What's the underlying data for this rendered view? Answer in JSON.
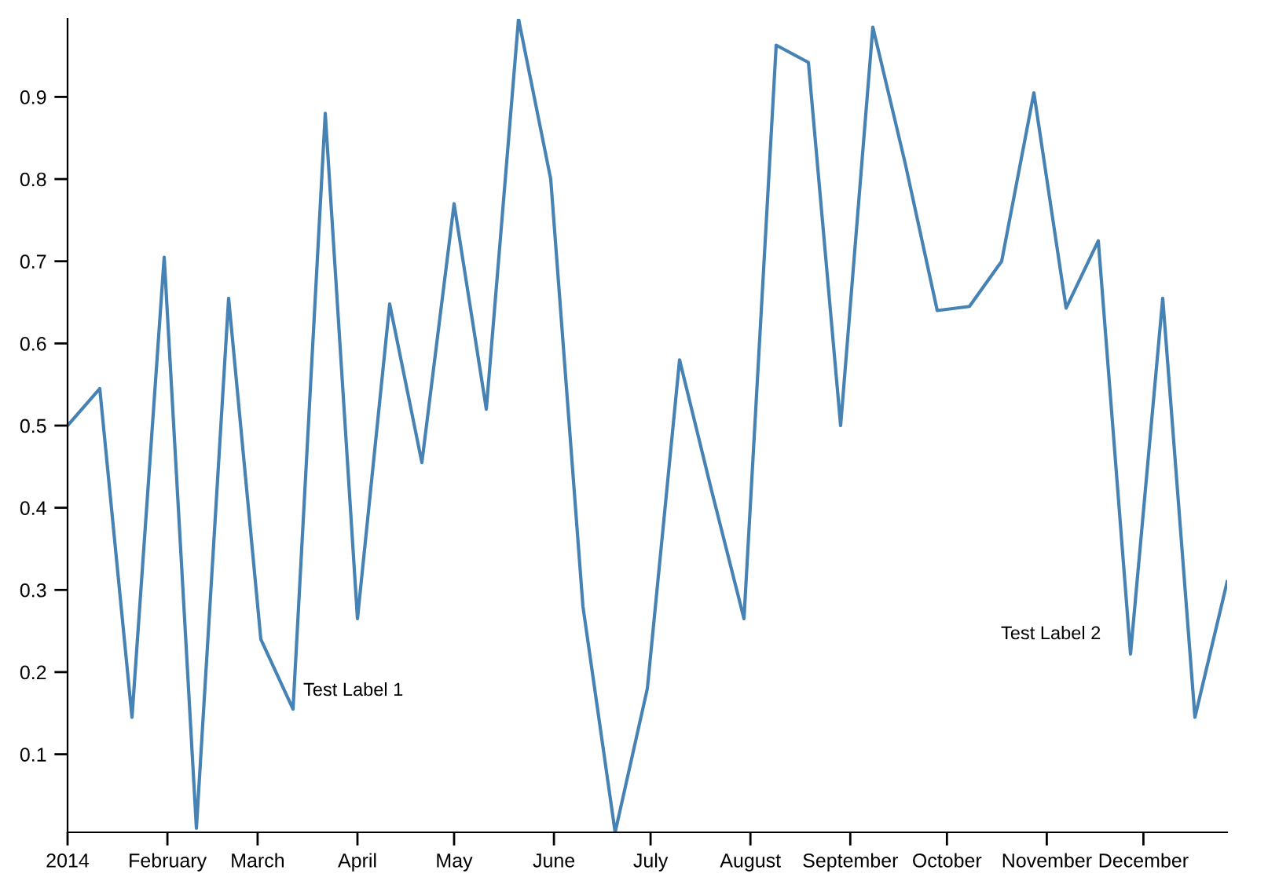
{
  "chart_data": {
    "type": "line",
    "x": [
      "2014-01-01",
      "2014-01-11",
      "2014-01-21",
      "2014-01-31",
      "2014-02-10",
      "2014-02-20",
      "2014-03-02",
      "2014-03-12",
      "2014-03-22",
      "2014-04-01",
      "2014-04-11",
      "2014-04-21",
      "2014-05-01",
      "2014-05-11",
      "2014-05-21",
      "2014-05-31",
      "2014-06-10",
      "2014-06-20",
      "2014-06-30",
      "2014-07-10",
      "2014-07-20",
      "2014-07-30",
      "2014-08-09",
      "2014-08-19",
      "2014-08-29",
      "2014-09-08",
      "2014-09-18",
      "2014-09-28",
      "2014-10-08",
      "2014-10-18",
      "2014-10-28",
      "2014-11-07",
      "2014-11-17",
      "2014-11-27",
      "2014-12-07",
      "2014-12-17",
      "2014-12-27"
    ],
    "series": [
      {
        "color": "#4682b4",
        "values": [
          0.5,
          0.545,
          0.145,
          0.705,
          0.01,
          0.655,
          0.24,
          0.155,
          0.88,
          0.265,
          0.648,
          0.455,
          0.77,
          0.52,
          0.995,
          0.8,
          0.28,
          0.005,
          0.18,
          0.58,
          0.42,
          0.265,
          0.963,
          0.942,
          0.5,
          0.985,
          0.82,
          0.64,
          0.645,
          0.7,
          0.905,
          0.643,
          0.725,
          0.222,
          0.655,
          0.145,
          0.31
        ]
      }
    ],
    "xlim": [
      "2014-01-01",
      "2014-12-27"
    ],
    "xticks": [
      {
        "value": "2014-01-01",
        "label": "2014"
      },
      {
        "value": "2014-02-01",
        "label": "February"
      },
      {
        "value": "2014-03-01",
        "label": "March"
      },
      {
        "value": "2014-04-01",
        "label": "April"
      },
      {
        "value": "2014-05-01",
        "label": "May"
      },
      {
        "value": "2014-06-01",
        "label": "June"
      },
      {
        "value": "2014-07-01",
        "label": "July"
      },
      {
        "value": "2014-08-01",
        "label": "August"
      },
      {
        "value": "2014-09-01",
        "label": "September"
      },
      {
        "value": "2014-10-01",
        "label": "October"
      },
      {
        "value": "2014-11-01",
        "label": "November"
      },
      {
        "value": "2014-12-01",
        "label": "December"
      }
    ],
    "ylim": [
      0.005,
      0.995
    ],
    "yticks": [
      0.1,
      0.2,
      0.3,
      0.4,
      0.5,
      0.6,
      0.7,
      0.8,
      0.9
    ],
    "annotations": [
      "Test Label 1",
      "Test Label 2"
    ],
    "grid": false,
    "legend": false,
    "marker": "none",
    "line_style": "solid"
  }
}
